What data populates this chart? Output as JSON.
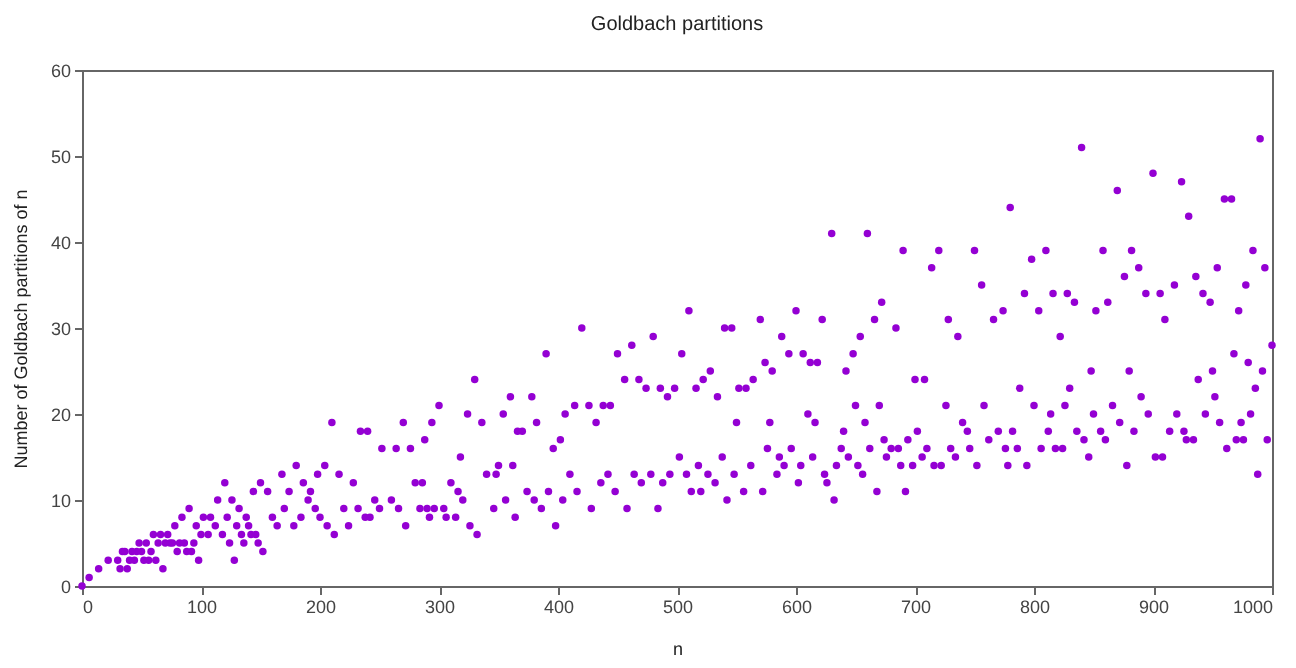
{
  "chart_data": {
    "type": "scatter",
    "title": "Goldbach partitions",
    "xlabel": "n",
    "ylabel": "Number of Goldbach partitions of n",
    "color": "#9400d3",
    "marker": "circle",
    "xlim": [
      0,
      1000
    ],
    "ylim": [
      0,
      60
    ],
    "xticks": [
      0,
      100,
      200,
      300,
      400,
      500,
      600,
      700,
      800,
      900,
      1000
    ],
    "yticks": [
      0,
      10,
      20,
      30,
      40,
      50,
      60
    ],
    "x": [
      0,
      6,
      14,
      22,
      30,
      32,
      34,
      36,
      38,
      40,
      42,
      44,
      46,
      48,
      50,
      52,
      54,
      56,
      58,
      60,
      62,
      64,
      66,
      68,
      70,
      72,
      74,
      76,
      78,
      80,
      82,
      84,
      86,
      88,
      90,
      92,
      94,
      96,
      98,
      100,
      102,
      106,
      108,
      112,
      114,
      118,
      120,
      122,
      124,
      126,
      128,
      130,
      132,
      134,
      136,
      138,
      140,
      142,
      144,
      146,
      148,
      150,
      152,
      156,
      160,
      164,
      168,
      170,
      174,
      178,
      180,
      184,
      186,
      190,
      192,
      196,
      198,
      200,
      204,
      206,
      210,
      212,
      216,
      220,
      224,
      228,
      232,
      234,
      238,
      240,
      242,
      246,
      250,
      252,
      260,
      264,
      266,
      270,
      272,
      276,
      280,
      284,
      286,
      288,
      290,
      292,
      294,
      296,
      300,
      304,
      306,
      310,
      314,
      316,
      318,
      320,
      324,
      326,
      330,
      332,
      336,
      340,
      346,
      348,
      350,
      354,
      356,
      360,
      362,
      364,
      366,
      370,
      374,
      378,
      380,
      382,
      386,
      390,
      392,
      396,
      398,
      402,
      404,
      406,
      410,
      414,
      416,
      420,
      426,
      428,
      432,
      436,
      438,
      442,
      444,
      448,
      450,
      456,
      458,
      462,
      464,
      468,
      470,
      474,
      478,
      480,
      484,
      486,
      488,
      492,
      494,
      498,
      502,
      504,
      508,
      510,
      512,
      516,
      518,
      520,
      522,
      526,
      528,
      532,
      534,
      538,
      540,
      542,
      546,
      548,
      550,
      552,
      556,
      558,
      562,
      564,
      570,
      572,
      574,
      576,
      578,
      580,
      584,
      586,
      588,
      590,
      594,
      596,
      600,
      602,
      604,
      606,
      610,
      612,
      614,
      616,
      618,
      622,
      624,
      626,
      630,
      632,
      634,
      638,
      640,
      642,
      644,
      648,
      650,
      652,
      654,
      656,
      658,
      660,
      662,
      666,
      668,
      670,
      672,
      674,
      676,
      680,
      684,
      686,
      688,
      690,
      692,
      694,
      698,
      700,
      702,
      706,
      708,
      710,
      714,
      716,
      720,
      722,
      726,
      728,
      730,
      734,
      736,
      740,
      744,
      746,
      750,
      752,
      756,
      758,
      762,
      766,
      770,
      774,
      776,
      778,
      780,
      782,
      786,
      788,
      792,
      794,
      798,
      800,
      804,
      806,
      810,
      812,
      814,
      816,
      818,
      822,
      824,
      826,
      828,
      830,
      834,
      836,
      840,
      842,
      846,
      848,
      850,
      852,
      856,
      858,
      860,
      862,
      866,
      870,
      872,
      876,
      878,
      880,
      882,
      884,
      888,
      890,
      894,
      896,
      900,
      902,
      906,
      908,
      910,
      914,
      918,
      920,
      924,
      926,
      928,
      930,
      934,
      936,
      938,
      942,
      944,
      948,
      950,
      952,
      954,
      956,
      960,
      962,
      966,
      968,
      970,
      972,
      974,
      976,
      978,
      980,
      982,
      984,
      986,
      988,
      990,
      992,
      994,
      996,
      1000
    ],
    "values": [
      0,
      1,
      2,
      3,
      3,
      2,
      4,
      4,
      2,
      3,
      4,
      3,
      4,
      5,
      4,
      3,
      5,
      3,
      4,
      6,
      3,
      5,
      6,
      2,
      5,
      6,
      5,
      5,
      7,
      4,
      5,
      8,
      5,
      4,
      9,
      4,
      5,
      7,
      3,
      6,
      8,
      6,
      8,
      7,
      10,
      6,
      12,
      8,
      5,
      10,
      3,
      7,
      9,
      6,
      5,
      8,
      7,
      6,
      11,
      6,
      5,
      12,
      4,
      11,
      8,
      7,
      13,
      9,
      11,
      7,
      14,
      8,
      12,
      10,
      11,
      9,
      13,
      8,
      14,
      7,
      19,
      6,
      13,
      9,
      7,
      12,
      9,
      18,
      8,
      18,
      8,
      10,
      9,
      16,
      10,
      16,
      9,
      19,
      7,
      16,
      12,
      9,
      12,
      17,
      9,
      8,
      19,
      9,
      21,
      9,
      8,
      12,
      8,
      11,
      15,
      10,
      20,
      7,
      24,
      6,
      19,
      13,
      9,
      13,
      14,
      20,
      10,
      22,
      14,
      8,
      18,
      18,
      11,
      22,
      10,
      19,
      9,
      27,
      11,
      16,
      7,
      17,
      10,
      20,
      13,
      21,
      11,
      30,
      21,
      9,
      19,
      12,
      21,
      13,
      21,
      11,
      27,
      24,
      9,
      28,
      13,
      24,
      12,
      23,
      13,
      29,
      9,
      23,
      12,
      22,
      13,
      23,
      15,
      27,
      13,
      32,
      11,
      23,
      14,
      11,
      24,
      13,
      25,
      12,
      22,
      15,
      30,
      10,
      30,
      13,
      19,
      23,
      11,
      23,
      14,
      24,
      31,
      11,
      26,
      16,
      19,
      25,
      13,
      15,
      29,
      14,
      27,
      16,
      32,
      12,
      14,
      27,
      20,
      26,
      15,
      19,
      26,
      31,
      13,
      12,
      41,
      10,
      14,
      16,
      18,
      25,
      15,
      27,
      21,
      14,
      29,
      13,
      19,
      41,
      16,
      31,
      11,
      21,
      33,
      17,
      15,
      16,
      30,
      16,
      14,
      39,
      11,
      17,
      14,
      24,
      18,
      15,
      24,
      16,
      37,
      14,
      39,
      14,
      21,
      31,
      16,
      15,
      29,
      19,
      18,
      16,
      39,
      14,
      35,
      21,
      17,
      31,
      18,
      32,
      16,
      14,
      44,
      18,
      16,
      23,
      34,
      14,
      38,
      21,
      32,
      16,
      39,
      18,
      20,
      34,
      16,
      29,
      16,
      21,
      34,
      23,
      33,
      18,
      51,
      17,
      15,
      25,
      20,
      32,
      18,
      39,
      17,
      33,
      21,
      46,
      19,
      36,
      14,
      25,
      39,
      18,
      37,
      22,
      34,
      20,
      48,
      15,
      34,
      15,
      31,
      18,
      35,
      20,
      47,
      18,
      17,
      43,
      17,
      36,
      24,
      34,
      20,
      33,
      25,
      22,
      37,
      19,
      45,
      16,
      45,
      27,
      17,
      32,
      19,
      17,
      35,
      26,
      20,
      39,
      23,
      13,
      52,
      25,
      37,
      17,
      28
    ]
  }
}
